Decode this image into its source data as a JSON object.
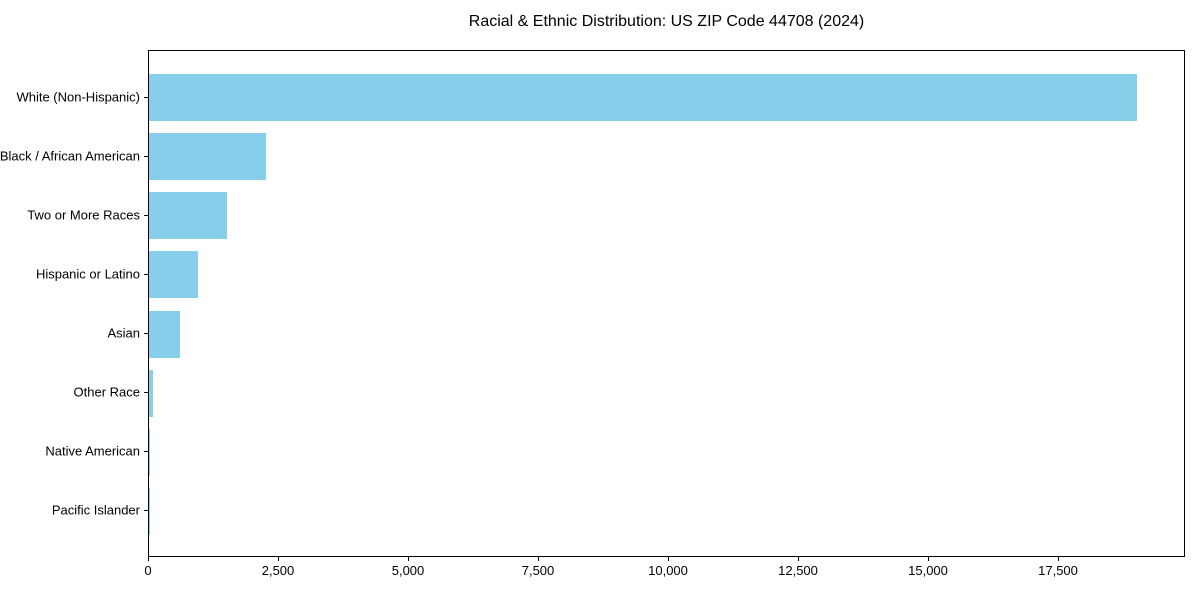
{
  "title": "Racial & Ethnic Distribution: US ZIP Code 44708 (2024)",
  "chart_data": {
    "type": "bar",
    "orientation": "horizontal",
    "title": "Racial & Ethnic Distribution: US ZIP Code 44708 (2024)",
    "categories": [
      "White (Non-Hispanic)",
      "Black / African American",
      "Two or More Races",
      "Hispanic or Latino",
      "Asian",
      "Other Race",
      "Native American",
      "Pacific Islander"
    ],
    "values": [
      19000,
      2250,
      1500,
      950,
      600,
      75,
      25,
      10
    ],
    "bar_color": "#87CEEB",
    "xlabel": "",
    "ylabel": "",
    "xlim": [
      0,
      19950
    ],
    "x_ticks": [
      0,
      2500,
      5000,
      7500,
      10000,
      12500,
      15000,
      17500
    ],
    "x_tick_labels": [
      "0",
      "2,500",
      "5,000",
      "7,500",
      "10,000",
      "12,500",
      "15,000",
      "17,500"
    ],
    "grid": false,
    "legend": null
  }
}
